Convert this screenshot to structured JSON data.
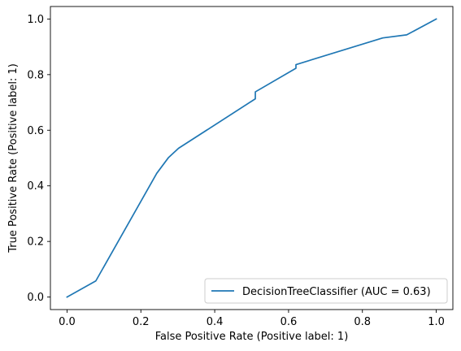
{
  "chart_data": {
    "type": "line",
    "xlabel": "False Positive Rate (Positive label: 1)",
    "ylabel": "True Positive Rate (Positive label: 1)",
    "xlim": [
      -0.045,
      1.045
    ],
    "ylim": [
      -0.045,
      1.045
    ],
    "xticks": [
      "0.0",
      "0.2",
      "0.4",
      "0.6",
      "0.8",
      "1.0"
    ],
    "yticks": [
      "0.0",
      "0.2",
      "0.4",
      "0.6",
      "0.8",
      "1.0"
    ],
    "grid": false,
    "legend_position": "lower-right",
    "series": [
      {
        "name": "DecisionTreeClassifier (AUC = 0.63)",
        "color": "#1f77b4",
        "x": [
          0.0,
          0.078,
          0.243,
          0.275,
          0.302,
          0.51,
          0.51,
          0.62,
          0.62,
          0.855,
          0.92,
          1.0
        ],
        "y": [
          0.0,
          0.058,
          0.445,
          0.502,
          0.535,
          0.713,
          0.738,
          0.823,
          0.836,
          0.932,
          0.943,
          1.0
        ]
      }
    ]
  }
}
